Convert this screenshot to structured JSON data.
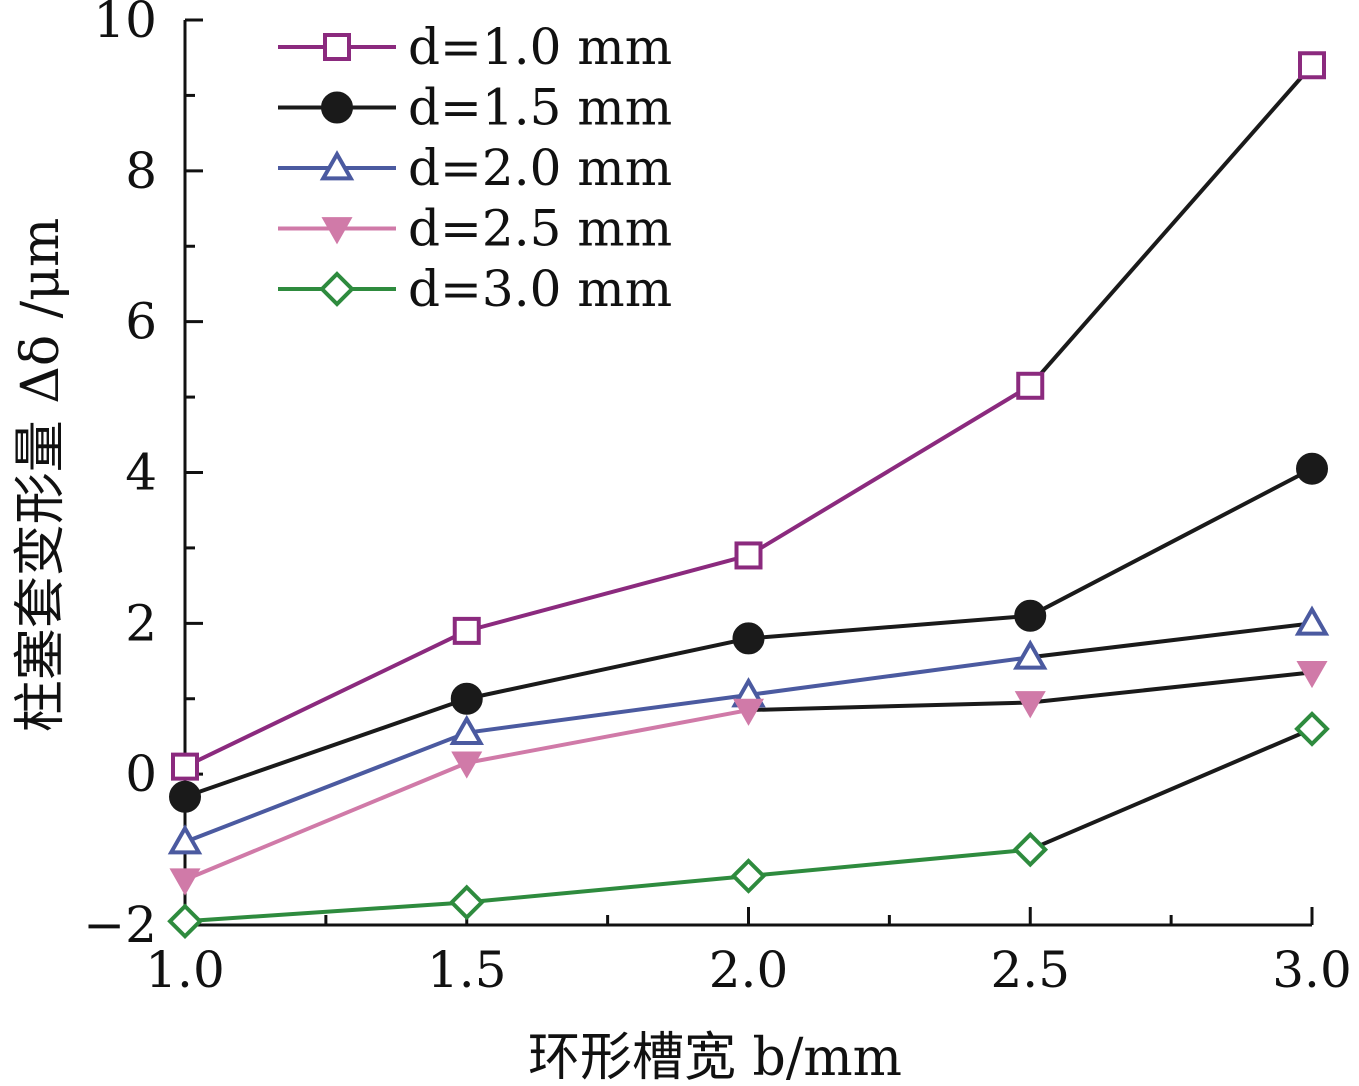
{
  "chart_data": {
    "type": "line",
    "title": "",
    "xlabel": "环形槽宽 b/mm",
    "ylabel": "柱塞套变形量 Δδ /μm",
    "x": [
      1.0,
      1.5,
      2.0,
      2.5,
      3.0
    ],
    "xlim": [
      1.0,
      3.0
    ],
    "ylim": [
      -2,
      10
    ],
    "x_ticks": [
      "1.0",
      "1.5",
      "2.0",
      "2.5",
      "3.0"
    ],
    "y_ticks": [
      "−2",
      "0",
      "2",
      "4",
      "6",
      "8",
      "10"
    ],
    "y_tick_values": [
      -2,
      0,
      2,
      4,
      6,
      8,
      10
    ],
    "grid": false,
    "legend_position": "top-left",
    "series": [
      {
        "name": "d=1.0 mm",
        "values": [
          0.1,
          1.9,
          2.9,
          5.15,
          9.4
        ],
        "color": "#8b2a7e",
        "marker": "square-open"
      },
      {
        "name": "d=1.5 mm",
        "values": [
          -0.3,
          1.0,
          1.8,
          2.1,
          4.05
        ],
        "color": "#1a1a1a",
        "marker": "circle-filled"
      },
      {
        "name": "d=2.0 mm",
        "values": [
          -0.9,
          0.55,
          1.05,
          1.55,
          2.0
        ],
        "color": "#4b5aa0",
        "marker": "triangle-up-open"
      },
      {
        "name": "d=2.5 mm",
        "values": [
          -1.4,
          0.15,
          0.85,
          0.95,
          1.35
        ],
        "color": "#d07aa8",
        "marker": "triangle-down-filled"
      },
      {
        "name": "d=3.0 mm",
        "values": [
          -1.95,
          -1.7,
          -1.35,
          -1.0,
          0.6
        ],
        "color": "#2e8b3e",
        "marker": "diamond-open"
      }
    ]
  }
}
